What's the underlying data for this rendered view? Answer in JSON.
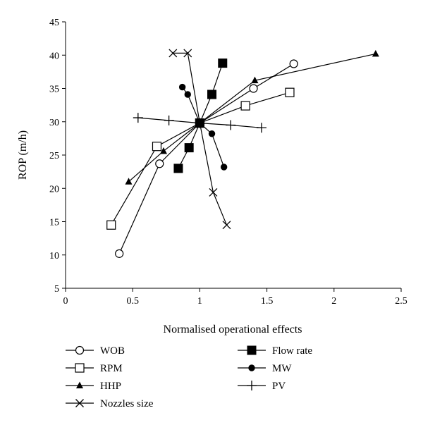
{
  "chart_data": {
    "type": "scatter",
    "xlabel": "Normalised operational effects",
    "ylabel": "ROP (m/h)",
    "xlim": [
      0,
      2.5
    ],
    "ylim": [
      5,
      45
    ],
    "xticks": [
      0,
      0.5,
      1,
      1.5,
      2,
      2.5
    ],
    "xtick_labels": [
      "0",
      "0.5",
      "1",
      "1.5",
      "2",
      "2.5"
    ],
    "yticks": [
      5,
      10,
      15,
      20,
      25,
      30,
      35,
      40,
      45
    ],
    "ytick_labels": [
      "5",
      "10",
      "15",
      "20",
      "25",
      "30",
      "35",
      "40",
      "45"
    ],
    "grid": false,
    "legend_position": "bottom",
    "series": [
      {
        "name": "WOB",
        "marker": "circle-open",
        "color": "#000000",
        "points": [
          [
            0.4,
            10.2
          ],
          [
            0.7,
            23.7
          ],
          [
            1.0,
            29.8
          ],
          [
            1.4,
            35.0
          ],
          [
            1.7,
            38.7
          ]
        ]
      },
      {
        "name": "RPM",
        "marker": "square-open",
        "color": "#000000",
        "points": [
          [
            0.34,
            14.5
          ],
          [
            0.68,
            26.3
          ],
          [
            1.0,
            29.8
          ],
          [
            1.34,
            32.4
          ],
          [
            1.67,
            34.4
          ]
        ]
      },
      {
        "name": "HHP",
        "marker": "triangle-filled",
        "color": "#000000",
        "points": [
          [
            0.47,
            21.0
          ],
          [
            0.73,
            25.6
          ],
          [
            1.0,
            29.8
          ],
          [
            1.41,
            36.2
          ],
          [
            2.31,
            40.2
          ]
        ]
      },
      {
        "name": "Nozzles size",
        "marker": "x",
        "color": "#000000",
        "points": [
          [
            1.2,
            14.5
          ],
          [
            1.1,
            19.4
          ],
          [
            1.0,
            29.8
          ],
          [
            0.91,
            40.3
          ],
          [
            0.8,
            40.3
          ]
        ]
      },
      {
        "name": "Flow rate",
        "marker": "square-filled",
        "color": "#000000",
        "points": [
          [
            0.84,
            23.0
          ],
          [
            0.92,
            26.1
          ],
          [
            1.0,
            29.8
          ],
          [
            1.09,
            34.1
          ],
          [
            1.17,
            38.8
          ]
        ]
      },
      {
        "name": "MW",
        "marker": "circle-filled",
        "color": "#000000",
        "points": [
          [
            1.18,
            23.2
          ],
          [
            1.09,
            28.2
          ],
          [
            1.0,
            29.8
          ],
          [
            0.91,
            34.1
          ],
          [
            0.87,
            35.2
          ]
        ]
      },
      {
        "name": "PV",
        "marker": "plus",
        "color": "#000000",
        "points": [
          [
            0.54,
            30.6
          ],
          [
            0.77,
            30.2
          ],
          [
            1.0,
            29.8
          ],
          [
            1.23,
            29.5
          ],
          [
            1.46,
            29.1
          ]
        ]
      }
    ]
  }
}
